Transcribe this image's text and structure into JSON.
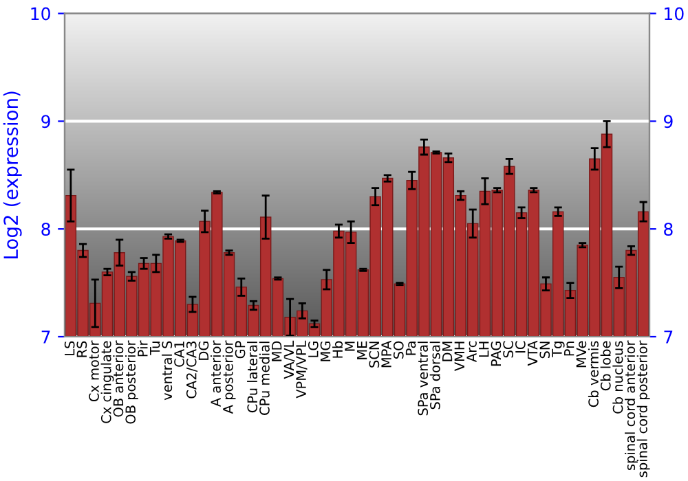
{
  "chart_data": {
    "type": "bar",
    "ylabel": "Log2 (expression)",
    "categories": [
      "LS",
      "RS",
      "Cx motor",
      "Cx cingulate",
      "OB anterior",
      "OB posterior",
      "Pir",
      "Tu",
      "ventral S",
      "CA1",
      "CA2/CA3",
      "DG",
      "A anterior",
      "A posterior",
      "GP",
      "CPu lateral",
      "CPu medial",
      "MD",
      "VA/VL",
      "VPM/VPL",
      "LG",
      "MG",
      "Hb",
      "M",
      "ME",
      "SCN",
      "MPA",
      "SO",
      "Pa",
      "SPa ventral",
      "SPa dorsal",
      "DM",
      "VMH",
      "Arc",
      "LH",
      "PAG",
      "SC",
      "IC",
      "VTA",
      "SN",
      "Tg",
      "Pn",
      "MVe",
      "Cb vermis",
      "Cb lobe",
      "Cb nucleus",
      "spinal cord anterior",
      "spinal cord posterior"
    ],
    "values": [
      8.31,
      7.8,
      7.31,
      7.6,
      7.78,
      7.56,
      7.68,
      7.68,
      7.93,
      7.89,
      7.3,
      8.07,
      8.34,
      7.78,
      7.46,
      7.29,
      8.11,
      7.54,
      7.18,
      7.24,
      7.12,
      7.53,
      7.98,
      7.97,
      7.62,
      8.3,
      8.47,
      7.49,
      8.45,
      8.76,
      8.71,
      8.66,
      8.31,
      8.05,
      8.35,
      8.36,
      8.58,
      8.15,
      8.36,
      7.49,
      8.16,
      7.43,
      7.85,
      8.65,
      8.88,
      7.55,
      7.8,
      8.16
    ],
    "errors": [
      0.24,
      0.06,
      0.22,
      0.03,
      0.12,
      0.04,
      0.05,
      0.08,
      0.02,
      0.01,
      0.07,
      0.1,
      0.01,
      0.02,
      0.08,
      0.04,
      0.2,
      0.01,
      0.17,
      0.07,
      0.03,
      0.09,
      0.06,
      0.1,
      0.01,
      0.08,
      0.03,
      0.01,
      0.08,
      0.07,
      0.01,
      0.04,
      0.04,
      0.13,
      0.12,
      0.02,
      0.07,
      0.05,
      0.02,
      0.06,
      0.04,
      0.07,
      0.02,
      0.1,
      0.12,
      0.1,
      0.04,
      0.09
    ],
    "color": "#b03030",
    "ylim": [
      7,
      10
    ],
    "yticks": [
      7,
      8,
      9,
      10
    ],
    "y2lim": [
      7,
      10
    ],
    "y2ticks": [
      7,
      8,
      9,
      10
    ],
    "grid": "y"
  }
}
